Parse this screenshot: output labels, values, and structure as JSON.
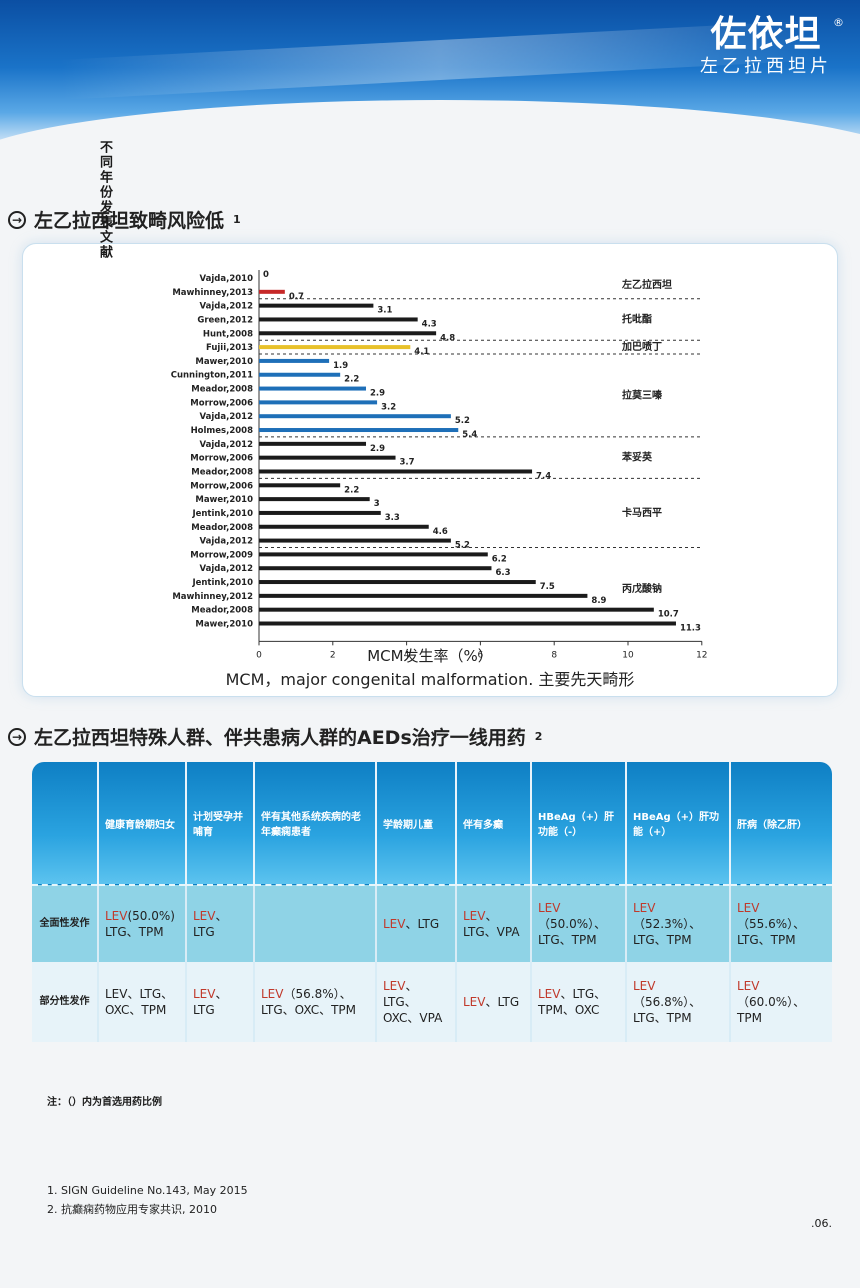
{
  "header": {
    "brand_name": "佐依坦",
    "brand_reg": "®",
    "brand_sub": "左乙拉西坦片"
  },
  "section1": {
    "title": "左乙拉西坦致畸风险低",
    "sup": "1"
  },
  "chart_data": {
    "type": "bar",
    "orientation": "horizontal",
    "ylabel": "不同年份发表文献",
    "xlabel": "MCM发生率（%）",
    "xlim": [
      0,
      12
    ],
    "xticks": [
      0,
      2,
      4,
      6,
      8,
      10,
      12
    ],
    "note": "MCM，major congenital malformation. 主要先天畸形",
    "colors": {
      "levetiracetam": "#c62828",
      "topiramate": "#1b1b1b",
      "gabapentin": "#e8c12a",
      "lamotrigine": "#1e6fb8",
      "phenytoin": "#1b1b1b",
      "carbamazepine": "#1b1b1b",
      "valproate": "#1b1b1b"
    },
    "groups": [
      {
        "name": "左乙拉西坦",
        "color": "levetiracetam",
        "categories": [
          "Vajda,2010",
          "Mawhinney,2013"
        ],
        "values": [
          0,
          0.7
        ]
      },
      {
        "name": "托吡酯",
        "color": "topiramate",
        "categories": [
          "Vajda,2012",
          "Green,2012",
          "Hunt,2008"
        ],
        "values": [
          3.1,
          4.3,
          4.8
        ]
      },
      {
        "name": "加巴喷丁",
        "color": "gabapentin",
        "categories": [
          "Fujii,2013"
        ],
        "values": [
          4.1
        ]
      },
      {
        "name": "拉莫三嗪",
        "color": "lamotrigine",
        "categories": [
          "Mawer,2010",
          "Cunnington,2011",
          "Meador,2008",
          "Morrow,2006",
          "Vajda,2012",
          "Holmes,2008"
        ],
        "values": [
          1.9,
          2.2,
          2.9,
          3.2,
          5.2,
          5.4
        ]
      },
      {
        "name": "苯妥英",
        "color": "phenytoin",
        "categories": [
          "Vajda,2012",
          "Morrow,2006",
          "Meador,2008"
        ],
        "values": [
          2.9,
          3.7,
          7.4
        ]
      },
      {
        "name": "卡马西平",
        "color": "carbamazepine",
        "categories": [
          "Morrow,2006",
          "Mawer,2010",
          "Jentink,2010",
          "Meador,2008",
          "Vajda,2012"
        ],
        "values": [
          2.2,
          3,
          3.3,
          4.6,
          5.2
        ]
      },
      {
        "name": "丙戊酸钠",
        "color": "valproate",
        "categories": [
          "Morrow,2009",
          "Vajda,2012",
          "Jentink,2010",
          "Mawhinney,2012",
          "Meador,2008",
          "Mawer,2010"
        ],
        "values": [
          6.2,
          6.3,
          7.5,
          8.9,
          10.7,
          11.3
        ]
      }
    ]
  },
  "section2": {
    "title": "左乙拉西坦特殊人群、伴共患病人群的AEDs治疗一线用药",
    "sup": "2"
  },
  "table": {
    "headers": [
      "",
      "健康育龄期妇女",
      "计划受孕并哺育",
      "伴有其他系统疾病的老年癫痫患者",
      "学龄期儿童",
      "伴有多癫",
      "HBeAg（+）肝功能（-）",
      "HBeAg（+）肝功能（+）",
      "肝病（除乙肝）"
    ],
    "rows": [
      {
        "label": "全面性发作",
        "cells": [
          {
            "lev": "LEV",
            "rest": "(50.0%) LTG、TPM"
          },
          {
            "lev": "LEV",
            "rest": "、LTG"
          },
          {
            "lev": "",
            "rest": ""
          },
          {
            "lev": "LEV",
            "rest": "、LTG"
          },
          {
            "lev": "LEV",
            "rest": "、LTG、VPA"
          },
          {
            "lev": "LEV",
            "rest": "（50.0%）、LTG、TPM"
          },
          {
            "lev": "LEV",
            "rest": "（52.3%）、LTG、TPM"
          },
          {
            "lev": "LEV",
            "rest": "（55.6%）、LTG、TPM"
          }
        ]
      },
      {
        "label": "部分性发作",
        "cells": [
          {
            "lev": "",
            "rest": "LEV、LTG、OXC、TPM"
          },
          {
            "lev": "LEV",
            "rest": "、LTG"
          },
          {
            "lev": "LEV",
            "rest": "（56.8%）、LTG、OXC、TPM"
          },
          {
            "lev": "LEV",
            "rest": "、LTG、OXC、VPA"
          },
          {
            "lev": "LEV",
            "rest": "、LTG"
          },
          {
            "lev": "LEV",
            "rest": "、LTG、TPM、OXC"
          },
          {
            "lev": "LEV",
            "rest": "（56.8%）、LTG、TPM"
          },
          {
            "lev": "LEV",
            "rest": "（60.0%）、TPM"
          }
        ]
      }
    ]
  },
  "note": "注：（）内为首选用药比例",
  "references": [
    "1. SIGN Guideline No.143, May 2015",
    "2. 抗癫痫药物应用专家共识, 2010"
  ],
  "page_number": ".06."
}
